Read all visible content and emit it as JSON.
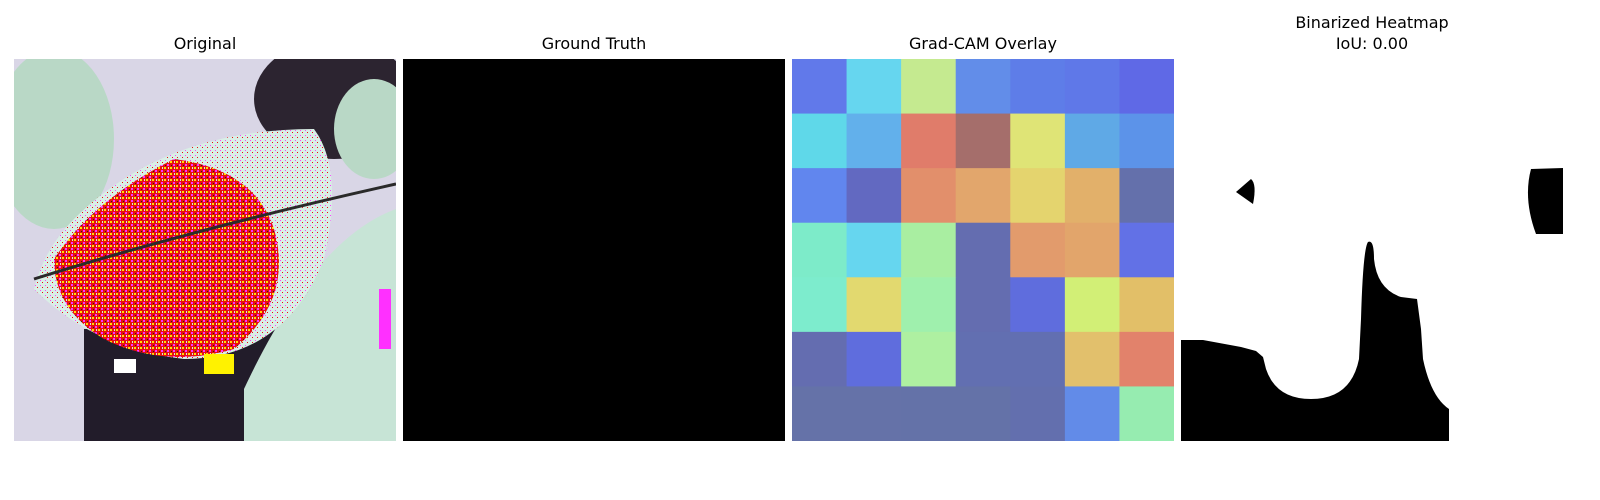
{
  "figure": {
    "panels": [
      {
        "title": "Original"
      },
      {
        "title": "Ground Truth"
      },
      {
        "title": "Grad-CAM Overlay"
      },
      {
        "title_line1": "Binarized Heatmap",
        "title_line2": "IoU: 0.00"
      }
    ]
  },
  "gradcam_grid": [
    [
      "#6179ea",
      "#66d6ef",
      "#c5ea90",
      "#628de9",
      "#5e7de8",
      "#5f78e8",
      "#5f69e6"
    ],
    [
      "#5fd8e9",
      "#62b0eb",
      "#e07c6a",
      "#a56e6b",
      "#dfe476",
      "#5fa9e6",
      "#5c93e9"
    ],
    [
      "#6186ee",
      "#6269c1",
      "#e28f6b",
      "#e2a66c",
      "#e4d46e",
      "#e2b06a",
      "#6470ab"
    ],
    [
      "#7debc9",
      "#66d6ef",
      "#a9eea1",
      "#646db0",
      "#e29b6c",
      "#e2a56b",
      "#6271e6"
    ],
    [
      "#7deccd",
      "#e2d96f",
      "#9ff0ad",
      "#646db0",
      "#5f6ddd",
      "#d2ef76",
      "#e2bf68"
    ],
    [
      "#646db0",
      "#5f6ddd",
      "#aef0a1",
      "#626fb1",
      "#626fb1",
      "#e2c06c",
      "#e2826b"
    ],
    [
      "#6572a8",
      "#6572a8",
      "#6472a8",
      "#6472a8",
      "#636fae",
      "#628be8",
      "#96ecb0"
    ]
  ],
  "colors": {
    "background": "#ffffff",
    "ground_truth_fill": "#000000",
    "mask_on": "#ffffff",
    "mask_off": "#000000"
  }
}
